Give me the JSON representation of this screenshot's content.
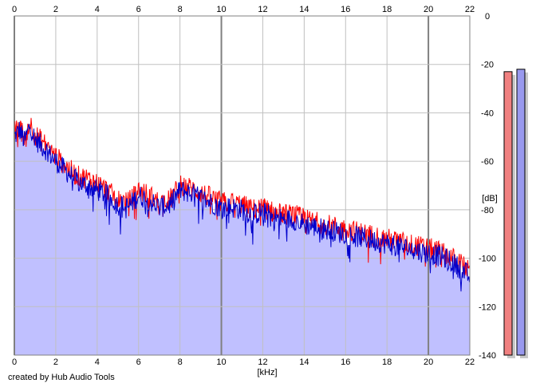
{
  "chart_data": {
    "type": "area",
    "title": "",
    "xlabel": "[kHz]",
    "ylabel": "[dB]",
    "xlim": [
      0,
      22
    ],
    "ylim": [
      -140,
      0
    ],
    "x_ticks": [
      0,
      2,
      4,
      6,
      8,
      10,
      12,
      14,
      16,
      18,
      20,
      22
    ],
    "x_tick_labels": [
      "0",
      "2",
      "4",
      "6",
      "8",
      "10",
      "12",
      "14",
      "16",
      "18",
      "20",
      "22"
    ],
    "y_ticks": [
      0,
      -20,
      -40,
      -60,
      -80,
      -100,
      -120,
      -140
    ],
    "y_tick_labels": [
      "0",
      "-20",
      "-40",
      "-60",
      "-80",
      "-100",
      "-120",
      "-140"
    ],
    "grid": true,
    "legend": "none",
    "series": [
      {
        "color": "#ff0000",
        "x": [
          0,
          0.25,
          0.5,
          0.75,
          1,
          1.5,
          2,
          2.5,
          3,
          3.5,
          4,
          4.5,
          5,
          5.5,
          6,
          6.5,
          7,
          7.5,
          8,
          8.5,
          9,
          9.5,
          10,
          10.5,
          11,
          11.5,
          12,
          12.5,
          13,
          13.5,
          14,
          14.5,
          15,
          15.5,
          16,
          16.5,
          17,
          17.5,
          18,
          18.5,
          19,
          19.5,
          20,
          20.5,
          21,
          21.5,
          21.8,
          22
        ],
        "values": [
          -48,
          -46,
          -50,
          -44,
          -49,
          -53,
          -58,
          -62,
          -66,
          -67,
          -69,
          -72,
          -76,
          -77,
          -72,
          -74,
          -77,
          -76,
          -70,
          -71,
          -73,
          -75,
          -77,
          -77,
          -78,
          -80,
          -79,
          -81,
          -82,
          -82,
          -84,
          -85,
          -86,
          -87,
          -88,
          -89,
          -90,
          -91,
          -92,
          -93,
          -94,
          -95,
          -96,
          -97,
          -99,
          -102,
          -104,
          -106
        ]
      },
      {
        "color": "#0000cc",
        "x": [
          0,
          0.25,
          0.5,
          0.75,
          1,
          1.5,
          2,
          2.5,
          3,
          3.5,
          4,
          4.5,
          5,
          5.5,
          6,
          6.5,
          7,
          7.5,
          8,
          8.5,
          9,
          9.5,
          10,
          10.5,
          11,
          11.5,
          12,
          12.5,
          13,
          13.5,
          14,
          14.5,
          15,
          15.5,
          16,
          16.5,
          17,
          17.5,
          18,
          18.5,
          19,
          19.5,
          20,
          20.5,
          21,
          21.5,
          21.8,
          22
        ],
        "values": [
          -50,
          -47,
          -52,
          -45,
          -51,
          -55,
          -60,
          -64,
          -68,
          -70,
          -72,
          -74,
          -78,
          -79,
          -74,
          -76,
          -79,
          -78,
          -72,
          -73,
          -75,
          -77,
          -79,
          -79,
          -80,
          -82,
          -81,
          -83,
          -84,
          -84,
          -86,
          -87,
          -88,
          -89,
          -90,
          -91,
          -92,
          -93,
          -94,
          -95,
          -96,
          -97,
          -98,
          -99,
          -101,
          -104,
          -106,
          -108
        ]
      }
    ],
    "level_meters": [
      {
        "color": "#f08080",
        "top_db": -23
      },
      {
        "color": "#9999ee",
        "top_db": -22
      }
    ],
    "fill_color": "#c0c0ff",
    "grid_color": "#c0c0c0",
    "major_grid_color": "#808080"
  },
  "footer": {
    "credit": "created by Hub Audio Tools"
  }
}
